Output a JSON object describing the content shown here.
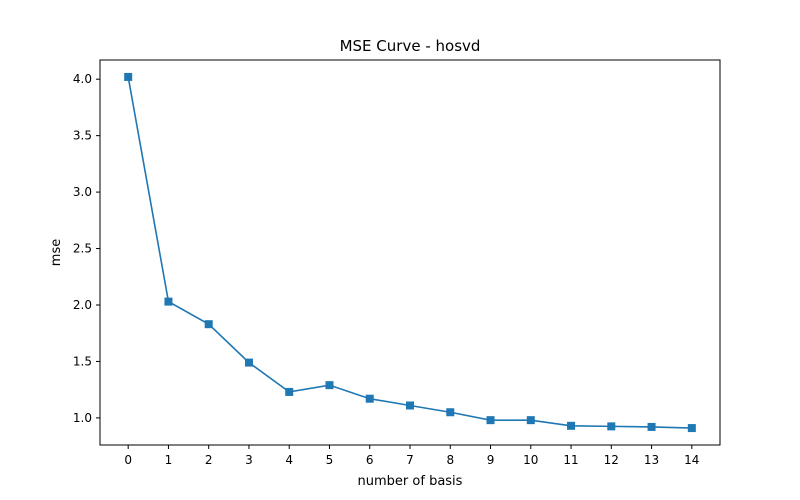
{
  "chart_data": {
    "type": "line",
    "title": "MSE Curve - hosvd",
    "xlabel": "number of basis",
    "ylabel": "mse",
    "x": [
      0,
      1,
      2,
      3,
      4,
      5,
      6,
      7,
      8,
      9,
      10,
      11,
      12,
      13,
      14
    ],
    "x_tick_labels": [
      "0",
      "1",
      "2",
      "3",
      "4",
      "5",
      "6",
      "7",
      "8",
      "9",
      "10",
      "11",
      "12",
      "13",
      "14"
    ],
    "xlim": [
      -0.7,
      14.7
    ],
    "y_ticks": [
      1.0,
      1.5,
      2.0,
      2.5,
      3.0,
      3.5,
      4.0
    ],
    "y_tick_labels": [
      "1.0",
      "1.5",
      "2.0",
      "2.5",
      "3.0",
      "3.5",
      "4.0"
    ],
    "ylim": [
      0.76,
      4.17
    ],
    "grid": false,
    "legend": "none",
    "series": [
      {
        "color": "#1f77b4",
        "marker": "square",
        "values": [
          4.02,
          2.03,
          1.83,
          1.49,
          1.23,
          1.29,
          1.17,
          1.11,
          1.05,
          0.98,
          0.98,
          0.93,
          0.925,
          0.92,
          0.91
        ]
      }
    ]
  }
}
